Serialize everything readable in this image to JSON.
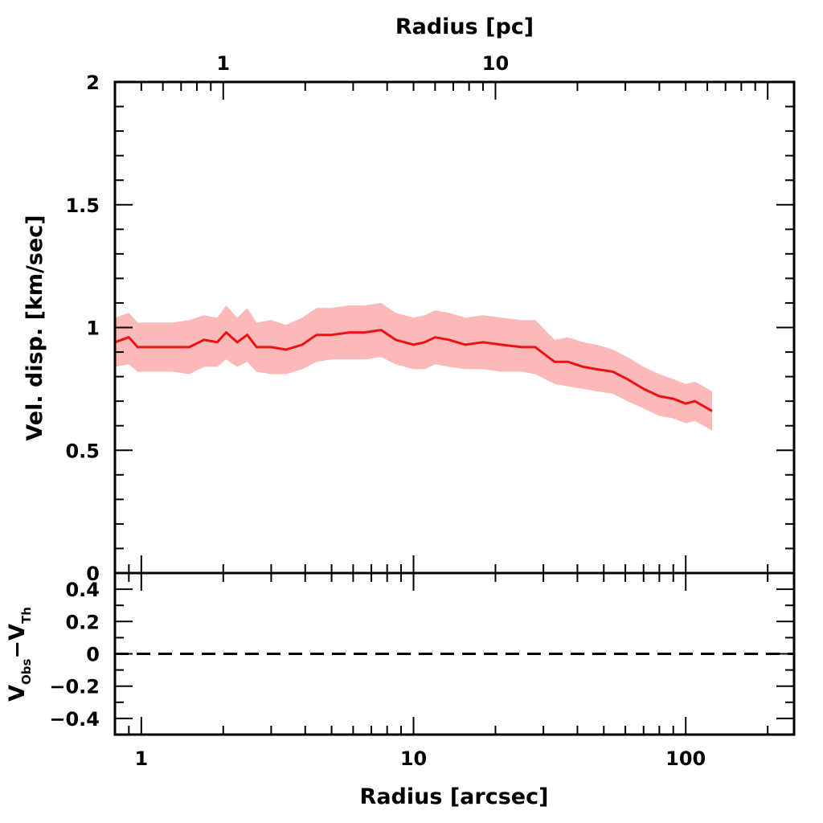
{
  "chart_data": {
    "type": "line",
    "x_scale": "log",
    "x_unit_label": "Radius [arcsec]",
    "top_axis_label": "Radius [pc]",
    "top_axis_ticks": [
      {
        "label": "1",
        "arcsec": 2.0
      },
      {
        "label": "10",
        "arcsec": 20.0
      }
    ],
    "xlim": [
      0.8,
      250
    ],
    "x_tick_labels": [
      "1",
      "10",
      "100"
    ],
    "main_panel": {
      "ylabel": "Vel. disp. [km/sec]",
      "ylim": [
        0,
        2
      ],
      "y_tick_labels": [
        "0",
        "0.5",
        "1",
        "1.5",
        "2"
      ],
      "series": [
        {
          "color": "#ee1111",
          "band_color": "#fbb9b9",
          "x": [
            0.8,
            0.9,
            0.97,
            1.1,
            1.3,
            1.5,
            1.7,
            1.9,
            2.05,
            2.25,
            2.45,
            2.65,
            3.0,
            3.4,
            3.9,
            4.4,
            5.0,
            5.8,
            6.6,
            7.6,
            8.6,
            10.0,
            11.0,
            12.0,
            13.5,
            15.5,
            18.0,
            21.0,
            25.0,
            28.0,
            33.0,
            37.0,
            42.0,
            47.0,
            54.0,
            61.0,
            70.0,
            80.0,
            90.0,
            100.0,
            108.0,
            125.0
          ],
          "y": [
            0.94,
            0.96,
            0.92,
            0.92,
            0.92,
            0.92,
            0.95,
            0.94,
            0.98,
            0.94,
            0.97,
            0.92,
            0.92,
            0.91,
            0.93,
            0.97,
            0.97,
            0.98,
            0.98,
            0.99,
            0.95,
            0.93,
            0.94,
            0.96,
            0.95,
            0.93,
            0.94,
            0.93,
            0.92,
            0.92,
            0.86,
            0.86,
            0.84,
            0.83,
            0.82,
            0.79,
            0.75,
            0.72,
            0.71,
            0.69,
            0.7,
            0.66
          ],
          "lower": [
            0.84,
            0.85,
            0.82,
            0.82,
            0.82,
            0.81,
            0.84,
            0.84,
            0.87,
            0.84,
            0.86,
            0.82,
            0.81,
            0.81,
            0.83,
            0.86,
            0.87,
            0.87,
            0.87,
            0.88,
            0.85,
            0.83,
            0.83,
            0.85,
            0.84,
            0.83,
            0.83,
            0.82,
            0.82,
            0.81,
            0.77,
            0.76,
            0.75,
            0.74,
            0.73,
            0.7,
            0.67,
            0.64,
            0.63,
            0.61,
            0.62,
            0.58
          ],
          "upper": [
            1.04,
            1.06,
            1.02,
            1.02,
            1.02,
            1.03,
            1.05,
            1.04,
            1.09,
            1.04,
            1.08,
            1.02,
            1.03,
            1.01,
            1.04,
            1.08,
            1.08,
            1.09,
            1.09,
            1.1,
            1.06,
            1.04,
            1.05,
            1.07,
            1.06,
            1.04,
            1.05,
            1.04,
            1.03,
            1.03,
            0.95,
            0.96,
            0.94,
            0.93,
            0.91,
            0.88,
            0.84,
            0.81,
            0.79,
            0.77,
            0.78,
            0.74
          ]
        }
      ]
    },
    "residual_panel": {
      "ylabel_main": "V",
      "ylabel_sub1": "Obs",
      "ylabel_dash": "−V",
      "ylabel_sub2": "Th",
      "ylim": [
        -0.5,
        0.5
      ],
      "y_tick_labels": [
        "0.4",
        "0.2",
        "0",
        "−0.2",
        "−0.4"
      ],
      "reference_line": {
        "y": 0,
        "style": "dashed"
      }
    }
  }
}
